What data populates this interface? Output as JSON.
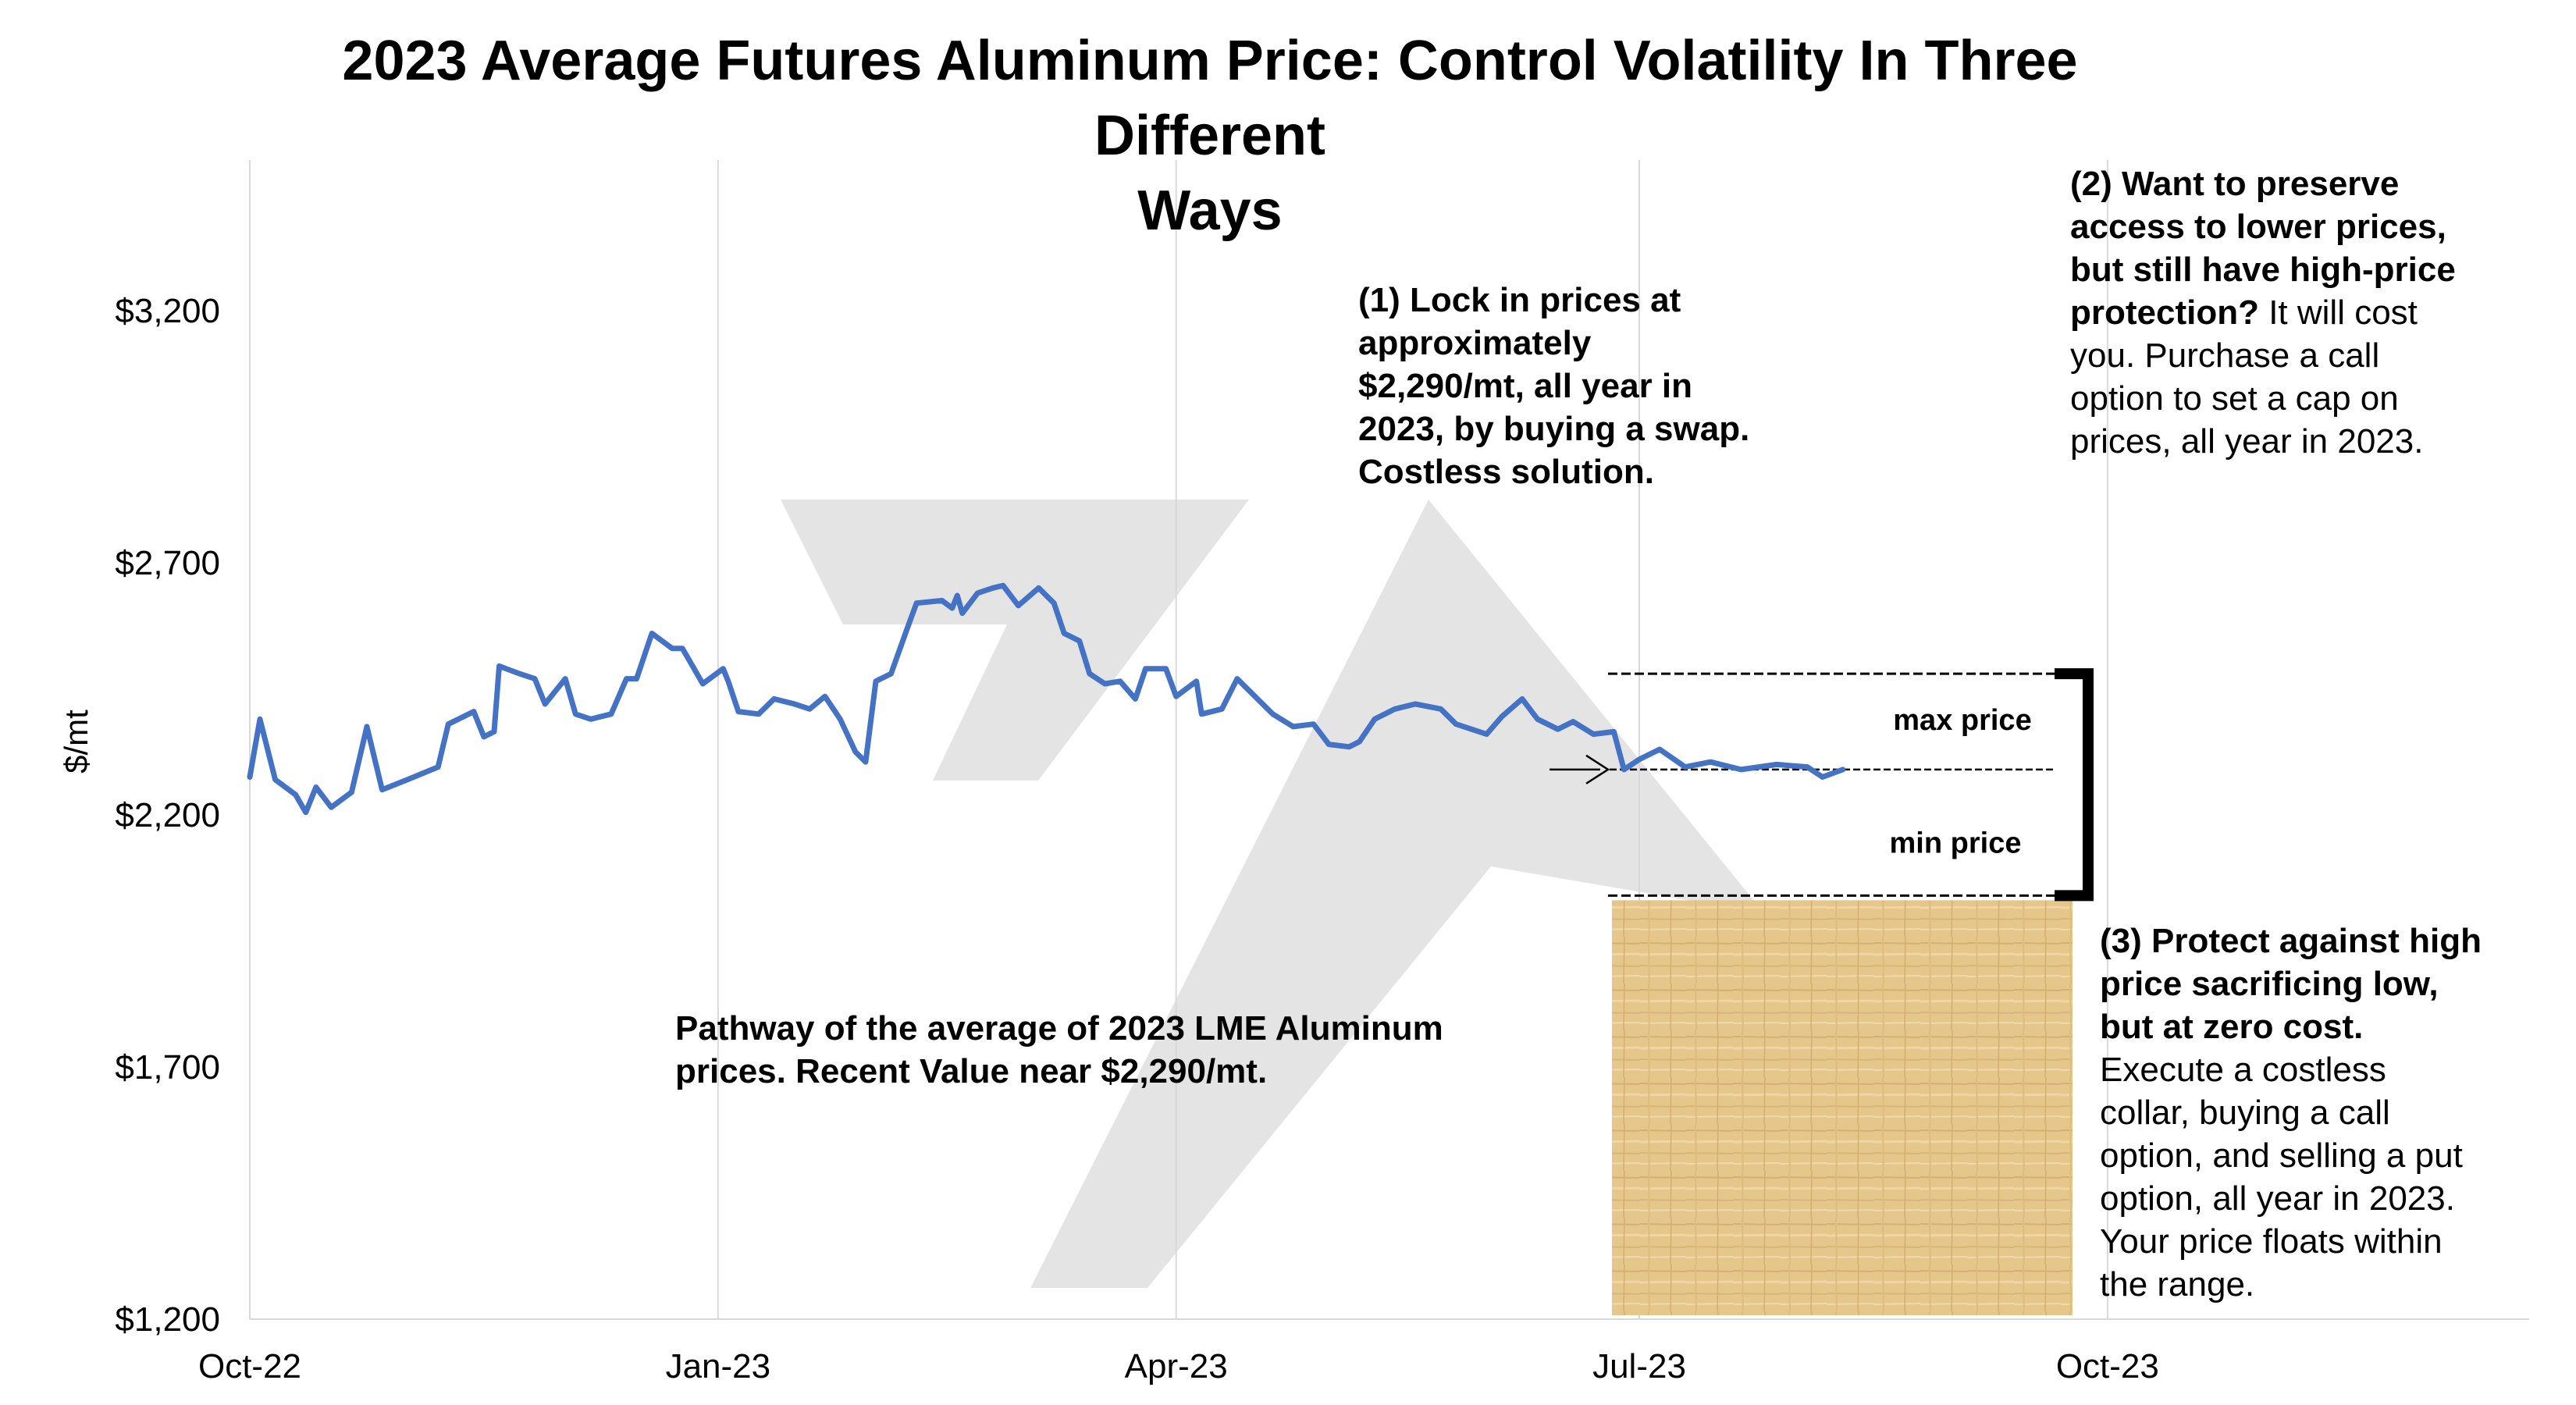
{
  "chart_data": {
    "type": "line",
    "title": "2023 Average Futures Aluminum Price: Control Volatility In Three Different Ways",
    "title_lines": [
      "2023 Average Futures Aluminum Price: Control Volatility In Three Different",
      "Ways"
    ],
    "xlabel": "",
    "ylabel": "$/mt",
    "ylim": [
      1200,
      3550
    ],
    "xlim": [
      "2022-10-01",
      "2023-12-31"
    ],
    "y_ticks": [
      1200,
      1700,
      2200,
      2700,
      3200
    ],
    "y_tick_labels": [
      "$1,200",
      "$1,700",
      "$2,200",
      "$2,700",
      "$3,200"
    ],
    "x_ticks": [
      "2022-10-01",
      "2023-01-01",
      "2023-04-01",
      "2023-07-01",
      "2023-10-01"
    ],
    "x_tick_labels": [
      "Oct-22",
      "Jan-23",
      "Apr-23",
      "Jul-23",
      "Oct-23"
    ],
    "grid": {
      "vertical": true,
      "horizontal": false
    },
    "line_color": "#4472C4",
    "series": [
      {
        "values": [
          [
            "2022-10-01",
            2275
          ],
          [
            "2022-10-03",
            2390
          ],
          [
            "2022-10-06",
            2270
          ],
          [
            "2022-10-10",
            2240
          ],
          [
            "2022-10-12",
            2205
          ],
          [
            "2022-10-14",
            2255
          ],
          [
            "2022-10-17",
            2215
          ],
          [
            "2022-10-21",
            2245
          ],
          [
            "2022-10-24",
            2375
          ],
          [
            "2022-10-27",
            2250
          ],
          [
            "2022-11-01",
            2270
          ],
          [
            "2022-11-07",
            2295
          ],
          [
            "2022-11-09",
            2380
          ],
          [
            "2022-11-14",
            2405
          ],
          [
            "2022-11-16",
            2355
          ],
          [
            "2022-11-18",
            2365
          ],
          [
            "2022-11-19",
            2495
          ],
          [
            "2022-11-23",
            2480
          ],
          [
            "2022-11-26",
            2470
          ],
          [
            "2022-11-28",
            2420
          ],
          [
            "2022-12-02",
            2470
          ],
          [
            "2022-12-04",
            2400
          ],
          [
            "2022-12-07",
            2390
          ],
          [
            "2022-12-11",
            2400
          ],
          [
            "2022-12-14",
            2470
          ],
          [
            "2022-12-16",
            2470
          ],
          [
            "2022-12-19",
            2560
          ],
          [
            "2022-12-23",
            2530
          ],
          [
            "2022-12-25",
            2530
          ],
          [
            "2022-12-27",
            2495
          ],
          [
            "2022-12-29",
            2460
          ],
          [
            "2023-01-02",
            2490
          ],
          [
            "2023-01-03",
            2465
          ],
          [
            "2023-01-05",
            2405
          ],
          [
            "2023-01-09",
            2400
          ],
          [
            "2023-01-12",
            2430
          ],
          [
            "2023-01-16",
            2420
          ],
          [
            "2023-01-19",
            2410
          ],
          [
            "2023-01-22",
            2435
          ],
          [
            "2023-01-25",
            2390
          ],
          [
            "2023-01-28",
            2325
          ],
          [
            "2023-01-30",
            2305
          ],
          [
            "2023-02-01",
            2465
          ],
          [
            "2023-02-04",
            2480
          ],
          [
            "2023-02-07",
            2565
          ],
          [
            "2023-02-09",
            2620
          ],
          [
            "2023-02-14",
            2625
          ],
          [
            "2023-02-16",
            2610
          ],
          [
            "2023-02-17",
            2635
          ],
          [
            "2023-02-18",
            2600
          ],
          [
            "2023-02-21",
            2640
          ],
          [
            "2023-02-24",
            2650
          ],
          [
            "2023-02-26",
            2655
          ],
          [
            "2023-03-01",
            2615
          ],
          [
            "2023-03-05",
            2650
          ],
          [
            "2023-03-08",
            2620
          ],
          [
            "2023-03-10",
            2560
          ],
          [
            "2023-03-13",
            2545
          ],
          [
            "2023-03-15",
            2480
          ],
          [
            "2023-03-18",
            2460
          ],
          [
            "2023-03-21",
            2465
          ],
          [
            "2023-03-24",
            2430
          ],
          [
            "2023-03-26",
            2490
          ],
          [
            "2023-03-30",
            2490
          ],
          [
            "2023-04-01",
            2435
          ],
          [
            "2023-04-05",
            2465
          ],
          [
            "2023-04-06",
            2400
          ],
          [
            "2023-04-10",
            2410
          ],
          [
            "2023-04-13",
            2470
          ],
          [
            "2023-04-16",
            2440
          ],
          [
            "2023-04-20",
            2400
          ],
          [
            "2023-04-24",
            2375
          ],
          [
            "2023-04-28",
            2380
          ],
          [
            "2023-05-01",
            2340
          ],
          [
            "2023-05-05",
            2335
          ],
          [
            "2023-05-07",
            2345
          ],
          [
            "2023-05-10",
            2390
          ],
          [
            "2023-05-14",
            2410
          ],
          [
            "2023-05-18",
            2420
          ],
          [
            "2023-05-23",
            2410
          ],
          [
            "2023-05-26",
            2380
          ],
          [
            "2023-06-01",
            2360
          ],
          [
            "2023-06-04",
            2395
          ],
          [
            "2023-06-08",
            2430
          ],
          [
            "2023-06-11",
            2390
          ],
          [
            "2023-06-15",
            2370
          ],
          [
            "2023-06-18",
            2385
          ],
          [
            "2023-06-22",
            2360
          ],
          [
            "2023-06-26",
            2365
          ],
          [
            "2023-06-28",
            2290
          ],
          [
            "2023-07-01",
            2310
          ],
          [
            "2023-07-05",
            2330
          ],
          [
            "2023-07-10",
            2295
          ],
          [
            "2023-07-15",
            2305
          ],
          [
            "2023-07-21",
            2290
          ],
          [
            "2023-07-28",
            2300
          ],
          [
            "2023-08-03",
            2295
          ],
          [
            "2023-08-06",
            2275
          ],
          [
            "2023-08-10",
            2290
          ]
        ]
      }
    ],
    "annotations": {
      "pathway": {
        "lines": [
          "Pathway of the average of 2023 LME Aluminum",
          "prices.  Recent Value near $2,290/mt."
        ]
      },
      "option1": {
        "bold_lines": [
          "(1) Lock in prices at",
          "approximately",
          "$2,290/mt, all year in",
          "2023, by buying a swap.",
          "Costless solution."
        ]
      },
      "option2": {
        "bold_lines": [
          "(2) Want to preserve",
          "access to lower prices,",
          "but still have high-price"
        ],
        "mixed_bold": "protection?",
        "mixed_rest": " It will cost",
        "normal_lines": [
          "you. Purchase a call",
          "option to set a cap on",
          "prices, all year in 2023."
        ]
      },
      "option3": {
        "bold_lines": [
          "(3) Protect against high",
          "price sacrificing low,",
          "but at zero cost."
        ],
        "normal_lines": [
          "Execute a costless",
          "collar, buying a call",
          "option, and selling a put",
          "option, all year in 2023.",
          "Your price floats within",
          "the range."
        ]
      },
      "max_price_label": "max price",
      "min_price_label": "min price",
      "max_price_level": 2480,
      "swap_level": 2290,
      "min_price_level": 2040
    },
    "texture_color": "#E8C98E"
  }
}
